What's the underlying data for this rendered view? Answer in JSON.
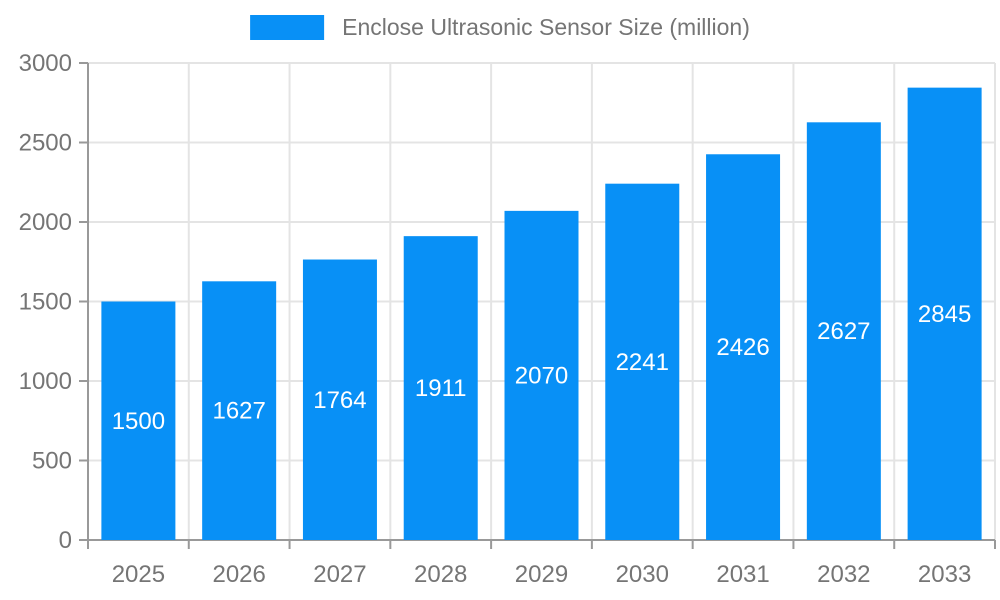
{
  "legend": {
    "label": "Enclose Ultrasonic Sensor Size (million)"
  },
  "colors": {
    "bar": "#0890F6",
    "axis_line": "#999999",
    "grid_line": "#E4E4E4",
    "tick_label": "#757575",
    "bar_value_label": "#FFFFFF"
  },
  "chart_data": {
    "type": "bar",
    "title": "Enclose Ultrasonic Sensor Size (million)",
    "categories": [
      "2025",
      "2026",
      "2027",
      "2028",
      "2029",
      "2030",
      "2031",
      "2032",
      "2033"
    ],
    "values": [
      1500,
      1627,
      1764,
      1911,
      2070,
      2241,
      2426,
      2627,
      2845
    ],
    "series_name": "Enclose Ultrasonic Sensor Size (million)",
    "xlabel": "",
    "ylabel": "",
    "ylim": [
      0,
      3000
    ],
    "ytick_step": 500,
    "ytick_labels": [
      "0",
      "500",
      "1000",
      "1500",
      "2000",
      "2500",
      "3000"
    ],
    "grid": true,
    "legend_position": "top-center",
    "value_labels": "inside-center"
  }
}
